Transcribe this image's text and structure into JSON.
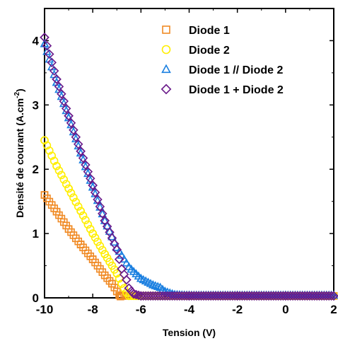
{
  "chart_data": {
    "type": "scatter",
    "title": "",
    "xlabel": "Tension (V)",
    "ylabel": "Densité de courant (A.cm",
    "ylabel_sup": "-2",
    "ylabel_close": ")",
    "xlim": [
      -10,
      2
    ],
    "ylim": [
      0,
      4.5
    ],
    "xticks": [
      -10,
      -8,
      -6,
      -4,
      -2,
      0,
      2
    ],
    "yticks": [
      0,
      1,
      2,
      3,
      4
    ],
    "grid": false,
    "legend_position": "top-right",
    "series": [
      {
        "name": "Diode 1",
        "marker": "square",
        "color": "#f08a24",
        "x": [
          -10.0,
          -9.5,
          -9.0,
          -8.5,
          -8.0,
          -7.5,
          -7.2,
          -7.0,
          -6.9,
          -6.85,
          -6.8,
          -6.0,
          -4.0,
          -2.0,
          0.0,
          2.0
        ],
        "y": [
          1.6,
          1.34,
          1.07,
          0.83,
          0.6,
          0.35,
          0.22,
          0.1,
          0.04,
          0.02,
          0.03,
          0.03,
          0.03,
          0.03,
          0.03,
          0.03
        ]
      },
      {
        "name": "Diode 2",
        "marker": "circle",
        "color": "#ffee00",
        "x": [
          -10.0,
          -9.5,
          -9.0,
          -8.5,
          -8.0,
          -7.5,
          -7.0,
          -6.8,
          -6.6,
          -6.5,
          -6.0,
          -4.0,
          -2.0,
          0.0,
          2.0
        ],
        "y": [
          2.45,
          2.05,
          1.7,
          1.35,
          1.0,
          0.68,
          0.38,
          0.22,
          0.08,
          0.03,
          0.03,
          0.03,
          0.03,
          0.03,
          0.03
        ]
      },
      {
        "name": "Diode 1 // Diode 2",
        "marker": "triangle",
        "color": "#1a7fe0",
        "x": [
          -10.0,
          -9.5,
          -9.0,
          -8.5,
          -8.0,
          -7.5,
          -7.0,
          -6.5,
          -6.0,
          -5.5,
          -5.2,
          -5.0,
          -4.6,
          -4.0,
          -2.0,
          0.0,
          2.0
        ],
        "y": [
          3.95,
          3.35,
          2.8,
          2.25,
          1.72,
          1.2,
          0.78,
          0.48,
          0.3,
          0.2,
          0.16,
          0.1,
          0.05,
          0.04,
          0.04,
          0.04,
          0.04
        ],
        "extra_fill": [
          3.8,
          3.75
        ]
      },
      {
        "name": "Diode 1 + Diode 2",
        "marker": "diamond",
        "color": "#6a1a8a",
        "x": [
          -10.0,
          -9.5,
          -9.0,
          -8.5,
          -8.0,
          -7.5,
          -7.0,
          -6.8,
          -6.6,
          -6.5,
          -6.3,
          -6.0,
          -4.0,
          -2.0,
          0.0,
          2.0
        ],
        "y": [
          4.05,
          3.4,
          2.83,
          2.28,
          1.75,
          1.2,
          0.75,
          0.45,
          0.28,
          0.15,
          0.06,
          0.03,
          0.03,
          0.03,
          0.03,
          0.03
        ]
      }
    ]
  }
}
